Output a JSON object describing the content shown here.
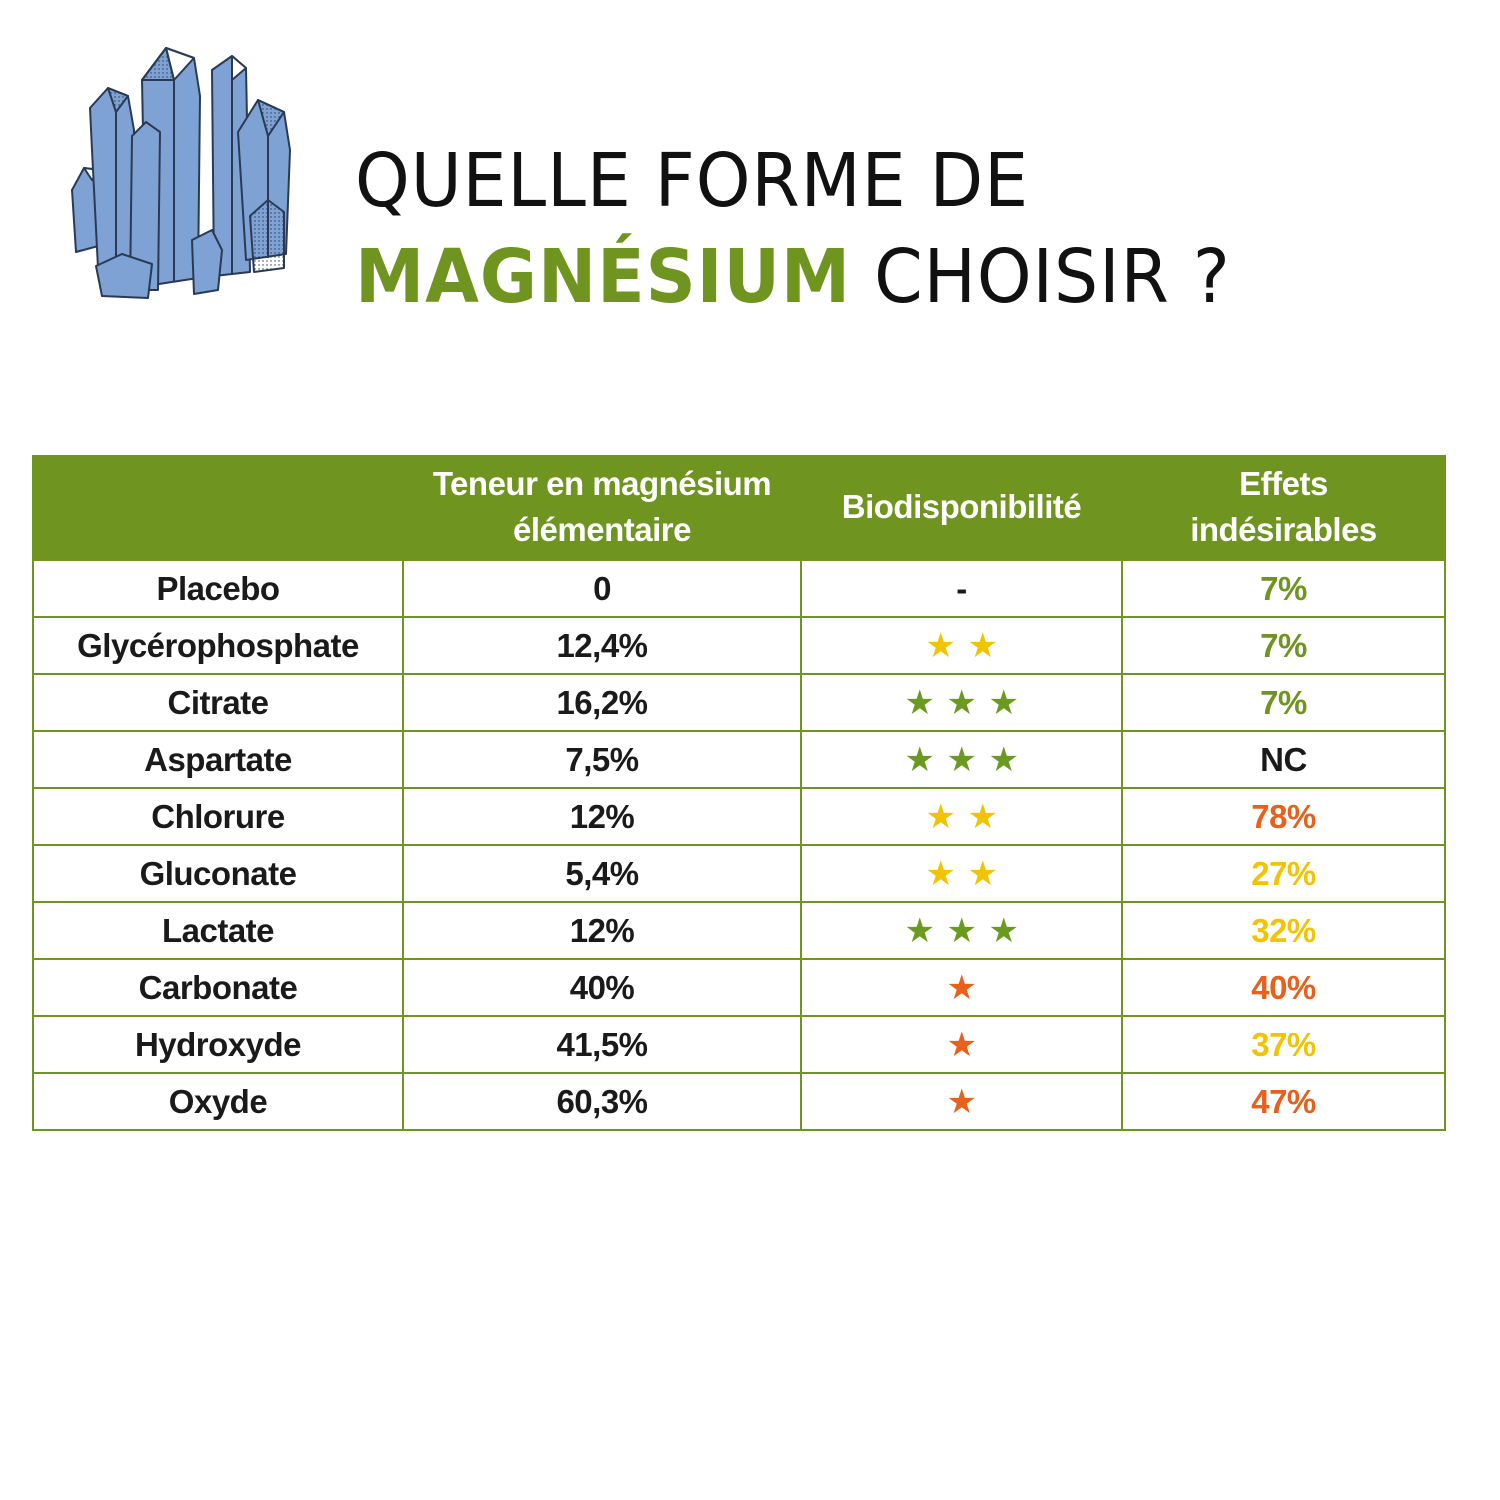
{
  "title": {
    "line1": "QUELLE FORME DE",
    "highlight": "MAGNÉSIUM",
    "line2_rest": " CHOISIR ?"
  },
  "crystal_icon": "crystal-cluster-icon",
  "colors": {
    "brand_green": "#6f9420",
    "star_green": "#6a9a1f",
    "star_yellow": "#f2c300",
    "star_orange": "#e8601c",
    "effect_green": "#6f9420",
    "effect_yellow": "#f2c300",
    "effect_orange": "#e8601c",
    "effect_black": "#1a1a1a",
    "crystal_blue": "#7fa2d4"
  },
  "table": {
    "headers": [
      "",
      "Teneur en magnésium élémentaire",
      "Biodisponibilité",
      "Effets indésirables"
    ],
    "rows": [
      {
        "form": "Placebo",
        "content": "0",
        "bio_text": "-",
        "stars": 0,
        "star_color": "",
        "effects": "7%",
        "effects_color": "green"
      },
      {
        "form": "Glycérophosphate",
        "content": "12,4%",
        "bio_text": "",
        "stars": 2,
        "star_color": "yellow",
        "effects": "7%",
        "effects_color": "green"
      },
      {
        "form": "Citrate",
        "content": "16,2%",
        "bio_text": "",
        "stars": 3,
        "star_color": "green",
        "effects": "7%",
        "effects_color": "green"
      },
      {
        "form": "Aspartate",
        "content": "7,5%",
        "bio_text": "",
        "stars": 3,
        "star_color": "green",
        "effects": "NC",
        "effects_color": "black"
      },
      {
        "form": "Chlorure",
        "content": "12%",
        "bio_text": "",
        "stars": 2,
        "star_color": "yellow",
        "effects": "78%",
        "effects_color": "orange"
      },
      {
        "form": "Gluconate",
        "content": "5,4%",
        "bio_text": "",
        "stars": 2,
        "star_color": "yellow",
        "effects": "27%",
        "effects_color": "yellow"
      },
      {
        "form": "Lactate",
        "content": "12%",
        "bio_text": "",
        "stars": 3,
        "star_color": "green",
        "effects": "32%",
        "effects_color": "yellow"
      },
      {
        "form": "Carbonate",
        "content": "40%",
        "bio_text": "",
        "stars": 1,
        "star_color": "orange",
        "effects": "40%",
        "effects_color": "orange"
      },
      {
        "form": "Hydroxyde",
        "content": "41,5%",
        "bio_text": "",
        "stars": 1,
        "star_color": "orange",
        "effects": "37%",
        "effects_color": "yellow"
      },
      {
        "form": "Oxyde",
        "content": "60,3%",
        "bio_text": "",
        "stars": 1,
        "star_color": "orange",
        "effects": "47%",
        "effects_color": "orange"
      }
    ]
  }
}
